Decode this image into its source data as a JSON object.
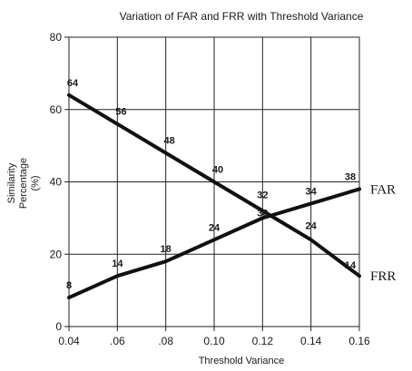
{
  "chart_data": {
    "type": "line",
    "title": "Variation of FAR and FRR with Threshold Variance",
    "xlabel": "Threshold Variance",
    "ylabel_lines": [
      "Similarity",
      "Percentage",
      "(%)"
    ],
    "x": [
      0.04,
      0.06,
      0.08,
      0.1,
      0.12,
      0.14,
      0.16
    ],
    "x_tick_labels": [
      "0.04",
      ".06",
      ".08",
      "0.10",
      "0.12",
      "0.14",
      "0.16"
    ],
    "xlim": [
      0.04,
      0.16
    ],
    "y_ticks": [
      0,
      20,
      40,
      60,
      80
    ],
    "y_tick_labels": [
      "0",
      "20",
      "40",
      "60",
      "80"
    ],
    "ylim": [
      0,
      80
    ],
    "grid": true,
    "series": [
      {
        "name": "FAR",
        "values": [
          8,
          14,
          18,
          24,
          30,
          34,
          38
        ],
        "data_labels": [
          "8",
          "14",
          "18",
          "24",
          "30",
          "34",
          "38"
        ]
      },
      {
        "name": "FRR",
        "values": [
          64,
          56,
          48,
          40,
          32,
          24,
          14
        ],
        "data_labels": [
          "64",
          "56",
          "48",
          "40",
          "32",
          "24",
          "14"
        ]
      }
    ]
  }
}
